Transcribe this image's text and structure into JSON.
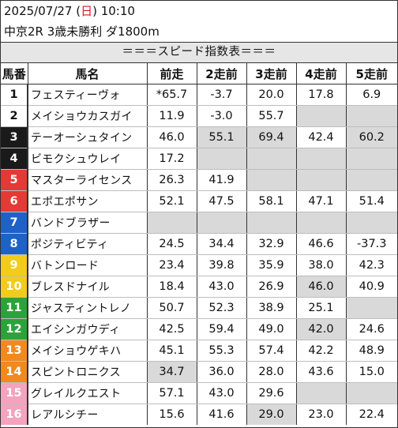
{
  "header": {
    "date": "2025/07/27 (",
    "weekday": "日",
    "date_close": ") 10:10",
    "race": "中京2R 3歳未勝利 ダ1800m"
  },
  "banner": "＝＝＝スピード指数表＝＝＝",
  "columns": [
    "馬番",
    "馬名",
    "前走",
    "2走前",
    "3走前",
    "4走前",
    "5走前"
  ],
  "gate_colors": {
    "1": "#ffffff",
    "2": "#ffffff",
    "3": "#1a1a1a",
    "4": "#1a1a1a",
    "5": "#e53935",
    "6": "#e53935",
    "7": "#1e62c8",
    "8": "#1e62c8",
    "9": "#f2cc1c",
    "10": "#f2cc1c",
    "11": "#2ea23a",
    "12": "#2ea23a",
    "13": "#f08a1e",
    "14": "#f08a1e",
    "15": "#f3a3be",
    "16": "#f3a3be"
  },
  "gate_text_colors": {
    "light": "#111111",
    "dark": "#ffffff"
  },
  "rows": [
    {
      "num": "1",
      "name": "フェスティーヴォ",
      "cells": [
        {
          "v": "*65.7"
        },
        {
          "v": "-3.7"
        },
        {
          "v": "20.0"
        },
        {
          "v": "17.8"
        },
        {
          "v": "6.9"
        }
      ]
    },
    {
      "num": "2",
      "name": "メイショウカスガイ",
      "cells": [
        {
          "v": "11.9"
        },
        {
          "v": "-3.0"
        },
        {
          "v": "55.7"
        },
        {
          "v": "",
          "g": true
        },
        {
          "v": "",
          "g": true
        }
      ]
    },
    {
      "num": "3",
      "name": "テーオーシュタイン",
      "cells": [
        {
          "v": "46.0"
        },
        {
          "v": "55.1",
          "g": true
        },
        {
          "v": "69.4",
          "g": true
        },
        {
          "v": "42.4"
        },
        {
          "v": "60.2",
          "g": true
        }
      ]
    },
    {
      "num": "4",
      "name": "ビモクシュウレイ",
      "cells": [
        {
          "v": "17.2"
        },
        {
          "v": "",
          "g": true
        },
        {
          "v": "",
          "g": true
        },
        {
          "v": "",
          "g": true
        },
        {
          "v": "",
          "g": true
        }
      ]
    },
    {
      "num": "5",
      "name": "マスターライセンス",
      "cells": [
        {
          "v": "26.3"
        },
        {
          "v": "41.9"
        },
        {
          "v": "",
          "g": true
        },
        {
          "v": "",
          "g": true
        },
        {
          "v": "",
          "g": true
        }
      ]
    },
    {
      "num": "6",
      "name": "エポエポサン",
      "cells": [
        {
          "v": "52.1"
        },
        {
          "v": "47.5"
        },
        {
          "v": "58.1"
        },
        {
          "v": "47.1"
        },
        {
          "v": "51.4"
        }
      ]
    },
    {
      "num": "7",
      "name": "バンドブラザー",
      "cells": [
        {
          "v": "",
          "g": true
        },
        {
          "v": "",
          "g": true
        },
        {
          "v": "",
          "g": true
        },
        {
          "v": "",
          "g": true
        },
        {
          "v": "",
          "g": true
        }
      ]
    },
    {
      "num": "8",
      "name": "ポジティビティ",
      "cells": [
        {
          "v": "24.5"
        },
        {
          "v": "34.4"
        },
        {
          "v": "32.9"
        },
        {
          "v": "46.6"
        },
        {
          "v": "-37.3"
        }
      ]
    },
    {
      "num": "9",
      "name": "バトンロード",
      "cells": [
        {
          "v": "23.4"
        },
        {
          "v": "39.8"
        },
        {
          "v": "35.9"
        },
        {
          "v": "38.0"
        },
        {
          "v": "42.3"
        }
      ]
    },
    {
      "num": "10",
      "name": "ブレスドナイル",
      "cells": [
        {
          "v": "18.4"
        },
        {
          "v": "43.0"
        },
        {
          "v": "26.9"
        },
        {
          "v": "46.0",
          "g": true
        },
        {
          "v": "40.9"
        }
      ]
    },
    {
      "num": "11",
      "name": "ジャスティントレノ",
      "cells": [
        {
          "v": "50.7"
        },
        {
          "v": "52.3"
        },
        {
          "v": "38.9"
        },
        {
          "v": "25.1"
        },
        {
          "v": "",
          "g": true
        }
      ]
    },
    {
      "num": "12",
      "name": "エイシンガウディ",
      "cells": [
        {
          "v": "42.5"
        },
        {
          "v": "59.4"
        },
        {
          "v": "49.0"
        },
        {
          "v": "42.0",
          "g": true
        },
        {
          "v": "24.6"
        }
      ]
    },
    {
      "num": "13",
      "name": "メイショウゲキハ",
      "cells": [
        {
          "v": "45.1"
        },
        {
          "v": "55.3"
        },
        {
          "v": "57.4"
        },
        {
          "v": "42.2"
        },
        {
          "v": "48.9"
        }
      ]
    },
    {
      "num": "14",
      "name": "スピントロニクス",
      "cells": [
        {
          "v": "34.7",
          "g": true
        },
        {
          "v": "36.0"
        },
        {
          "v": "28.0"
        },
        {
          "v": "43.6"
        },
        {
          "v": "15.0"
        }
      ]
    },
    {
      "num": "15",
      "name": "グレイルクエスト",
      "cells": [
        {
          "v": "57.1"
        },
        {
          "v": "43.0"
        },
        {
          "v": "29.6"
        },
        {
          "v": "",
          "g": true
        },
        {
          "v": "",
          "g": true
        }
      ]
    },
    {
      "num": "16",
      "name": "レアルシチー",
      "cells": [
        {
          "v": "15.6"
        },
        {
          "v": "41.6"
        },
        {
          "v": "29.0",
          "g": true
        },
        {
          "v": "23.0"
        },
        {
          "v": "22.4"
        }
      ]
    }
  ]
}
